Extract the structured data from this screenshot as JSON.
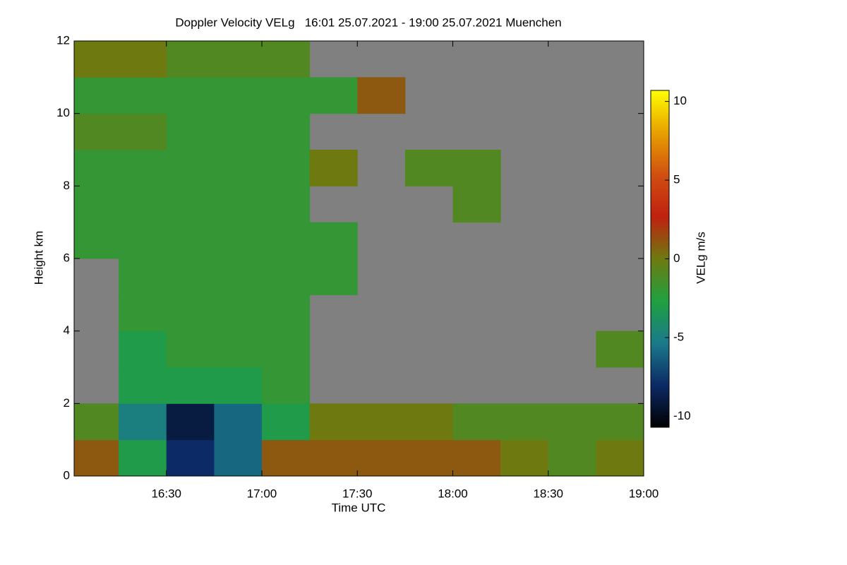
{
  "chart_data": {
    "type": "heatmap",
    "title": "Doppler Velocity VELg   16:01 25.07.2021 - 19:00 25.07.2021 Muenchen",
    "x_label": "Time UTC",
    "y_label": "Height km",
    "colorbar_label": "VELg m/s",
    "x": [
      16.0167,
      16.25,
      16.5,
      16.75,
      17.0,
      17.25,
      17.5,
      17.75,
      18.0,
      18.25,
      18.5,
      18.75,
      19.0
    ],
    "y": [
      0,
      1,
      2,
      3,
      4,
      5,
      6,
      7,
      8,
      9,
      10,
      11,
      12
    ],
    "values": [
      [
        1,
        -3,
        -8,
        -6,
        1,
        1,
        1,
        1,
        1,
        0,
        -1,
        0
      ],
      [
        -1,
        -5,
        -9,
        -6,
        -3,
        0,
        0,
        0,
        -1,
        -1,
        -1,
        -1
      ],
      [
        null,
        -3,
        -3,
        -3,
        -2,
        null,
        null,
        null,
        null,
        null,
        null,
        null
      ],
      [
        null,
        -3,
        -2,
        -2,
        -2,
        null,
        null,
        null,
        null,
        null,
        null,
        -1
      ],
      [
        null,
        -2,
        -2,
        -2,
        -2,
        null,
        null,
        null,
        null,
        null,
        null,
        null
      ],
      [
        null,
        -2,
        -2,
        -2,
        -2,
        -2,
        null,
        null,
        null,
        null,
        null,
        null
      ],
      [
        -2,
        -2,
        -2,
        -2,
        -2,
        -2,
        null,
        null,
        null,
        null,
        null,
        null
      ],
      [
        -2,
        -2,
        -2,
        -2,
        -2,
        null,
        null,
        null,
        -1,
        null,
        null,
        null
      ],
      [
        -2,
        -2,
        -2,
        -2,
        -2,
        0,
        null,
        -1,
        -1,
        null,
        null,
        null
      ],
      [
        -1,
        -1,
        -2,
        -2,
        -2,
        null,
        null,
        null,
        null,
        null,
        null,
        null
      ],
      [
        -2,
        -2,
        -2,
        -2,
        -2,
        -2,
        1,
        null,
        null,
        null,
        null,
        null
      ],
      [
        0,
        0,
        -1,
        -1,
        -1,
        null,
        null,
        null,
        null,
        null,
        null,
        null
      ]
    ],
    "background_color": "#808080",
    "colormap": [
      "#000000",
      "#0c2a66",
      "#1a7a8a",
      "#20a040",
      "#6e7a10",
      "#c02010",
      "#d05010",
      "#e8a000",
      "#ffff00"
    ],
    "xlim": [
      16.0167,
      19.0
    ],
    "xticks": [
      {
        "value": 16.5,
        "label": "16:30"
      },
      {
        "value": 17.0,
        "label": "17:00"
      },
      {
        "value": 17.5,
        "label": "17:30"
      },
      {
        "value": 18.0,
        "label": "18:00"
      },
      {
        "value": 18.5,
        "label": "18:30"
      },
      {
        "value": 19.0,
        "label": "19:00"
      }
    ],
    "ylim": [
      0,
      12
    ],
    "yticks": [
      0,
      2,
      4,
      6,
      8,
      10,
      12
    ],
    "clim": [
      -10.7,
      10.7
    ],
    "cticks": [
      -10,
      -5,
      0,
      5,
      10
    ]
  }
}
